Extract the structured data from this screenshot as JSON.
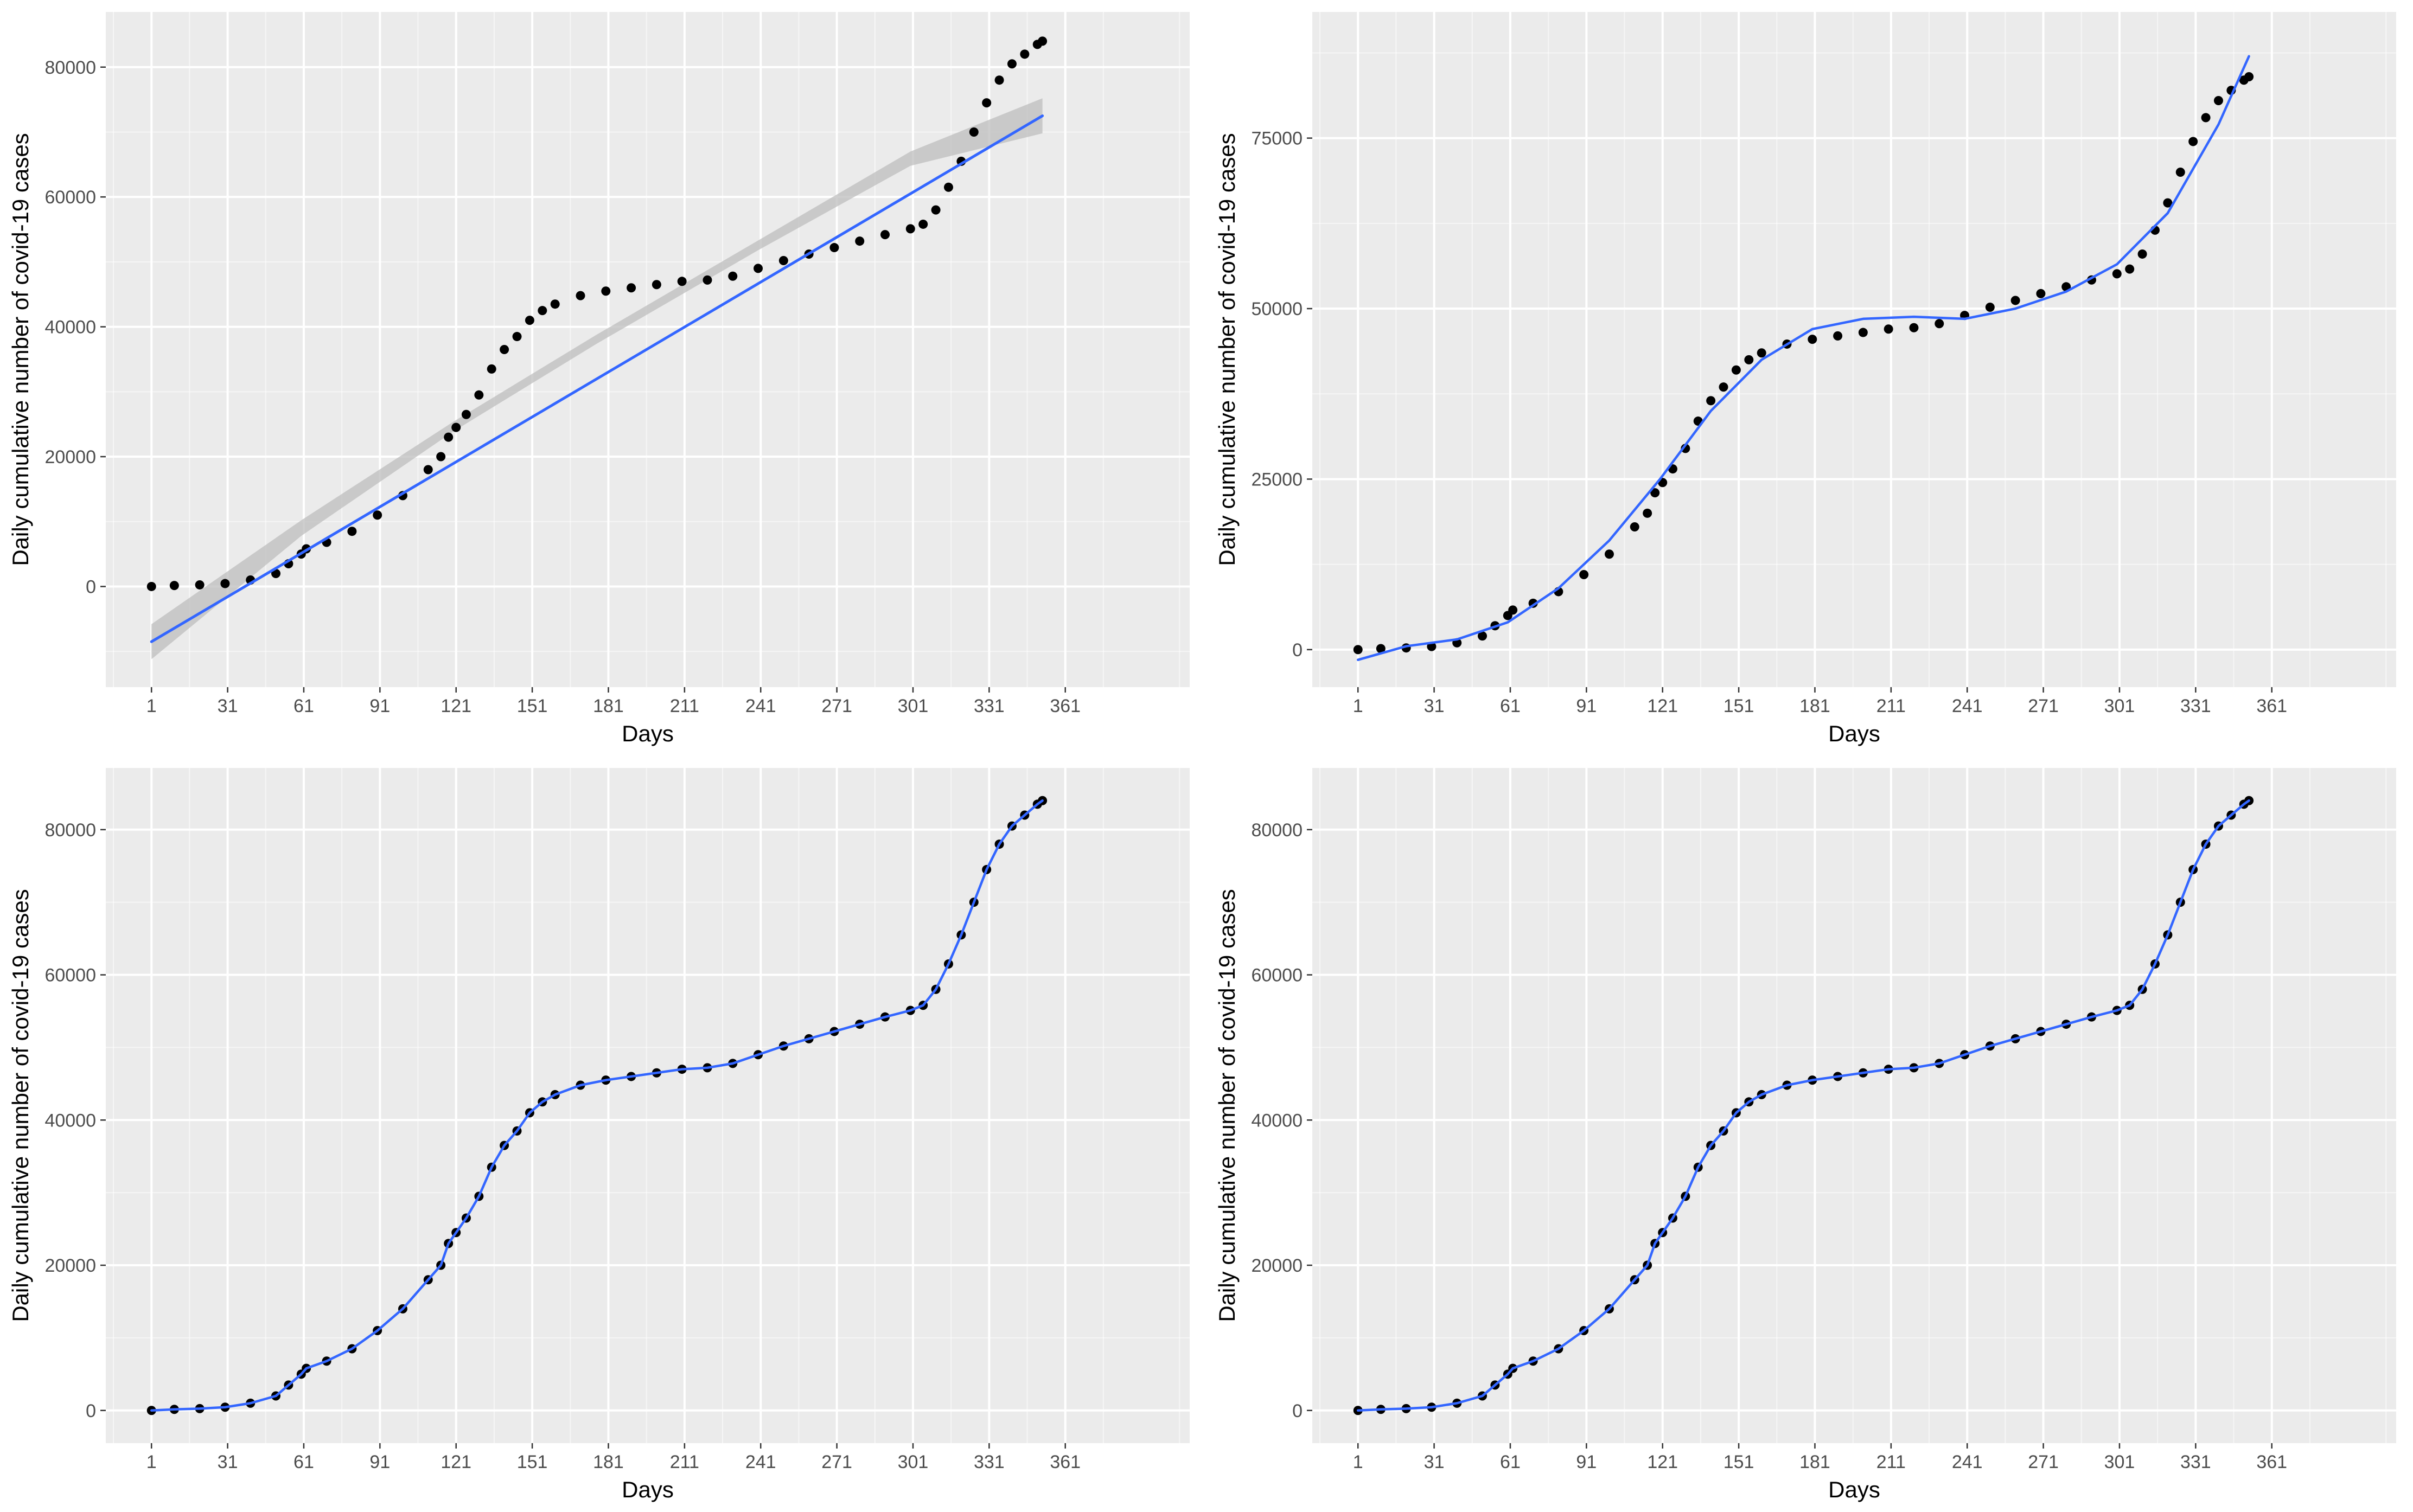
{
  "colors": {
    "panel_background": "#ebebeb",
    "grid_major": "#ffffff",
    "points": "#000000",
    "fit_line": "#3366ff",
    "confidence_band": "#bdbdbd"
  },
  "chart_data": [
    {
      "type": "scatter",
      "fit": "linear",
      "confidence_band": true,
      "xlabel": "Days",
      "ylabel": "Daily cumulative number of covid-19 cases",
      "xticks": [
        1,
        31,
        61,
        91,
        121,
        151,
        181,
        211,
        241,
        271,
        301,
        331,
        361
      ],
      "xtick_labels": [
        "1",
        "31",
        "61",
        "91",
        "121",
        "151",
        "181",
        "211",
        "241",
        "271",
        "301",
        "331",
        "361"
      ],
      "yticks": [
        0,
        20000,
        40000,
        60000,
        80000
      ],
      "ytick_labels": [
        "0",
        "20000",
        "40000",
        "60000",
        "80000"
      ],
      "xlim": [
        -17,
        410
      ],
      "ylim": [
        -15500,
        88500
      ],
      "grid": true,
      "legend": "none",
      "observed": {
        "x": [
          1,
          10,
          20,
          30,
          40,
          50,
          55,
          60,
          62,
          70,
          80,
          90,
          100,
          110,
          115,
          118,
          121,
          125,
          130,
          135,
          140,
          145,
          150,
          155,
          160,
          170,
          180,
          190,
          200,
          210,
          220,
          230,
          240,
          250,
          260,
          270,
          280,
          290,
          300,
          305,
          310,
          315,
          320,
          325,
          330,
          335,
          340,
          345,
          350,
          352
        ],
        "y": [
          0,
          150,
          250,
          450,
          1000,
          2000,
          3500,
          5000,
          5800,
          6800,
          8500,
          11000,
          14000,
          18000,
          20000,
          23000,
          24500,
          26500,
          29500,
          33500,
          36500,
          38500,
          41000,
          42500,
          43500,
          44800,
          45500,
          46000,
          46500,
          47000,
          47200,
          47800,
          49000,
          50200,
          51200,
          52200,
          53200,
          54200,
          55100,
          55800,
          58000,
          61500,
          65500,
          70000,
          74500,
          78000,
          80500,
          82000,
          83500,
          84000
        ]
      },
      "fit_line": {
        "x": [
          1,
          352
        ],
        "y": [
          -8500,
          72500
        ]
      },
      "band": {
        "x": [
          1,
          60,
          120,
          176,
          240,
          300,
          352
        ],
        "upper": [
          -5800,
          10200,
          25400,
          38700,
          53300,
          67000,
          75200
        ],
        "lower": [
          -11200,
          7800,
          23900,
          37300,
          51800,
          64800,
          69800
        ]
      }
    },
    {
      "type": "scatter",
      "fit": "smooth",
      "confidence_band": false,
      "xlabel": "Days",
      "ylabel": "Daily cumulative number of covid-19 cases",
      "xticks": [
        1,
        31,
        61,
        91,
        121,
        151,
        181,
        211,
        241,
        271,
        301,
        331,
        361
      ],
      "xtick_labels": [
        "1",
        "31",
        "61",
        "91",
        "121",
        "151",
        "181",
        "211",
        "241",
        "271",
        "301",
        "331",
        "361"
      ],
      "yticks": [
        0,
        25000,
        50000,
        75000
      ],
      "ytick_labels": [
        "0",
        "25000",
        "50000",
        "75000"
      ],
      "xlim": [
        -17,
        410
      ],
      "ylim": [
        -5500,
        93500
      ],
      "grid": true,
      "legend": "none",
      "observed": {
        "x": [
          1,
          10,
          20,
          30,
          40,
          50,
          55,
          60,
          62,
          70,
          80,
          90,
          100,
          110,
          115,
          118,
          121,
          125,
          130,
          135,
          140,
          145,
          150,
          155,
          160,
          170,
          180,
          190,
          200,
          210,
          220,
          230,
          240,
          250,
          260,
          270,
          280,
          290,
          300,
          305,
          310,
          315,
          320,
          325,
          330,
          335,
          340,
          345,
          350,
          352
        ],
        "y": [
          0,
          150,
          250,
          450,
          1000,
          2000,
          3500,
          5000,
          5800,
          6800,
          8500,
          11000,
          14000,
          18000,
          20000,
          23000,
          24500,
          26500,
          29500,
          33500,
          36500,
          38500,
          41000,
          42500,
          43500,
          44800,
          45500,
          46000,
          46500,
          47000,
          47200,
          47800,
          49000,
          50200,
          51200,
          52200,
          53200,
          54200,
          55100,
          55800,
          58000,
          61500,
          65500,
          70000,
          74500,
          78000,
          80500,
          82000,
          83500,
          84000
        ]
      },
      "fit_line": {
        "x": [
          1,
          20,
          40,
          60,
          80,
          100,
          120,
          140,
          160,
          180,
          200,
          220,
          240,
          260,
          280,
          300,
          320,
          340,
          352
        ],
        "y": [
          -1500,
          500,
          1500,
          4000,
          9000,
          16000,
          25000,
          35000,
          42500,
          47000,
          48500,
          48800,
          48500,
          50000,
          52500,
          56500,
          64000,
          77000,
          87000
        ]
      }
    },
    {
      "type": "scatter",
      "fit": "smooth",
      "confidence_band": false,
      "xlabel": "Days",
      "ylabel": "Daily cumulative number of covid-19 cases",
      "xticks": [
        1,
        31,
        61,
        91,
        121,
        151,
        181,
        211,
        241,
        271,
        301,
        331,
        361
      ],
      "xtick_labels": [
        "1",
        "31",
        "61",
        "91",
        "121",
        "151",
        "181",
        "211",
        "241",
        "271",
        "301",
        "331",
        "361"
      ],
      "yticks": [
        0,
        20000,
        40000,
        60000,
        80000
      ],
      "ytick_labels": [
        "0",
        "20000",
        "40000",
        "60000",
        "80000"
      ],
      "xlim": [
        -17,
        410
      ],
      "ylim": [
        -4500,
        88500
      ],
      "grid": true,
      "legend": "none",
      "observed": {
        "x": [
          1,
          10,
          20,
          30,
          40,
          50,
          55,
          60,
          62,
          70,
          80,
          90,
          100,
          110,
          115,
          118,
          121,
          125,
          130,
          135,
          140,
          145,
          150,
          155,
          160,
          170,
          180,
          190,
          200,
          210,
          220,
          230,
          240,
          250,
          260,
          270,
          280,
          290,
          300,
          305,
          310,
          315,
          320,
          325,
          330,
          335,
          340,
          345,
          350,
          352
        ],
        "y": [
          0,
          150,
          250,
          450,
          1000,
          2000,
          3500,
          5000,
          5800,
          6800,
          8500,
          11000,
          14000,
          18000,
          20000,
          23000,
          24500,
          26500,
          29500,
          33500,
          36500,
          38500,
          41000,
          42500,
          43500,
          44800,
          45500,
          46000,
          46500,
          47000,
          47200,
          47800,
          49000,
          50200,
          51200,
          52200,
          53200,
          54200,
          55100,
          55800,
          58000,
          61500,
          65500,
          70000,
          74500,
          78000,
          80500,
          82000,
          83500,
          84000
        ]
      },
      "fit_line": {
        "x": [
          1,
          10,
          20,
          30,
          40,
          50,
          55,
          60,
          62,
          70,
          80,
          90,
          100,
          110,
          115,
          118,
          121,
          125,
          130,
          135,
          140,
          145,
          150,
          155,
          160,
          170,
          180,
          190,
          200,
          210,
          220,
          230,
          240,
          250,
          260,
          270,
          280,
          290,
          300,
          305,
          310,
          315,
          320,
          325,
          330,
          335,
          340,
          345,
          350,
          352
        ],
        "y": [
          0,
          150,
          250,
          450,
          1000,
          2000,
          3500,
          5000,
          5800,
          6800,
          8500,
          11000,
          14000,
          18000,
          20000,
          23000,
          24500,
          26500,
          29500,
          33500,
          36500,
          38500,
          41000,
          42500,
          43500,
          44800,
          45500,
          46000,
          46500,
          47000,
          47200,
          47800,
          49000,
          50200,
          51200,
          52200,
          53200,
          54200,
          55100,
          55800,
          58000,
          61500,
          65500,
          70000,
          74500,
          78000,
          80500,
          82000,
          83500,
          84000
        ]
      }
    },
    {
      "type": "scatter",
      "fit": "smooth",
      "confidence_band": false,
      "xlabel": "Days",
      "ylabel": "Daily cumulative number of covid-19 cases",
      "xticks": [
        1,
        31,
        61,
        91,
        121,
        151,
        181,
        211,
        241,
        271,
        301,
        331,
        361
      ],
      "xtick_labels": [
        "1",
        "31",
        "61",
        "91",
        "121",
        "151",
        "181",
        "211",
        "241",
        "271",
        "301",
        "331",
        "361"
      ],
      "yticks": [
        0,
        20000,
        40000,
        60000,
        80000
      ],
      "ytick_labels": [
        "0",
        "20000",
        "40000",
        "60000",
        "80000"
      ],
      "xlim": [
        -17,
        410
      ],
      "ylim": [
        -4500,
        88500
      ],
      "grid": true,
      "legend": "none",
      "observed": {
        "x": [
          1,
          10,
          20,
          30,
          40,
          50,
          55,
          60,
          62,
          70,
          80,
          90,
          100,
          110,
          115,
          118,
          121,
          125,
          130,
          135,
          140,
          145,
          150,
          155,
          160,
          170,
          180,
          190,
          200,
          210,
          220,
          230,
          240,
          250,
          260,
          270,
          280,
          290,
          300,
          305,
          310,
          315,
          320,
          325,
          330,
          335,
          340,
          345,
          350,
          352
        ],
        "y": [
          0,
          150,
          250,
          450,
          1000,
          2000,
          3500,
          5000,
          5800,
          6800,
          8500,
          11000,
          14000,
          18000,
          20000,
          23000,
          24500,
          26500,
          29500,
          33500,
          36500,
          38500,
          41000,
          42500,
          43500,
          44800,
          45500,
          46000,
          46500,
          47000,
          47200,
          47800,
          49000,
          50200,
          51200,
          52200,
          53200,
          54200,
          55100,
          55800,
          58000,
          61500,
          65500,
          70000,
          74500,
          78000,
          80500,
          82000,
          83500,
          84000
        ]
      },
      "fit_line": {
        "x": [
          1,
          10,
          20,
          30,
          40,
          50,
          55,
          60,
          62,
          70,
          80,
          90,
          100,
          110,
          115,
          118,
          121,
          125,
          130,
          135,
          140,
          145,
          150,
          155,
          160,
          170,
          180,
          190,
          200,
          210,
          220,
          230,
          240,
          250,
          260,
          270,
          280,
          290,
          300,
          305,
          310,
          315,
          320,
          325,
          330,
          335,
          340,
          345,
          350,
          352
        ],
        "y": [
          0,
          150,
          250,
          450,
          1000,
          2000,
          3500,
          5000,
          5800,
          6800,
          8500,
          11000,
          14000,
          18000,
          20000,
          23000,
          24500,
          26500,
          29500,
          33500,
          36500,
          38500,
          41000,
          42500,
          43500,
          44800,
          45500,
          46000,
          46500,
          47000,
          47200,
          47800,
          49000,
          50200,
          51200,
          52200,
          53200,
          54200,
          55100,
          55800,
          58000,
          61500,
          65500,
          70000,
          74500,
          78000,
          80500,
          82000,
          83500,
          84000
        ]
      }
    }
  ]
}
